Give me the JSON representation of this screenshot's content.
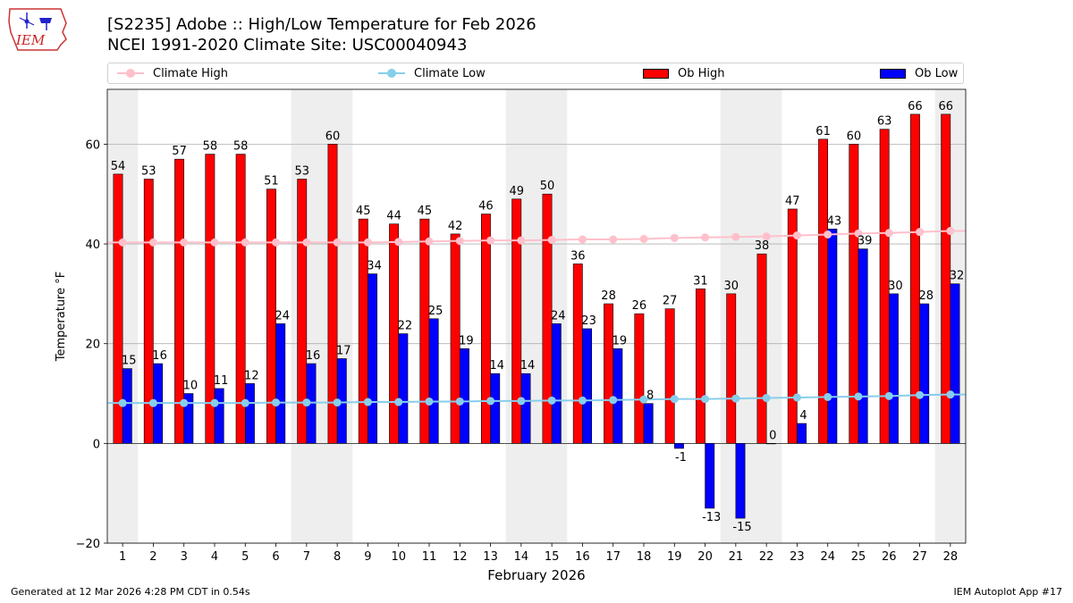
{
  "header": {
    "title_line1": "[S2235] Adobe :: High/Low Temperature for Feb 2026",
    "title_line2": "NCEI 1991-2020 Climate Site: USC00040943",
    "logo_text": "IEM"
  },
  "legend": {
    "climate_high": "Climate High",
    "climate_low": "Climate Low",
    "ob_high": "Ob High",
    "ob_low": "Ob Low"
  },
  "colors": {
    "ob_high": "#ff0000",
    "ob_low": "#0000ff",
    "climate_high": "#ffc0cb",
    "climate_low": "#87ceeb",
    "weekend_band": "#eeeeee",
    "grid": "#b0b0b0"
  },
  "footer": {
    "left": "Generated at 12 Mar 2026 4:28 PM CDT in 0.54s",
    "right": "IEM Autoplot App #17"
  },
  "chart_data": {
    "type": "bar",
    "xlabel": "February 2026",
    "ylabel": "Temperature °F",
    "ylim": [
      -20,
      71
    ],
    "yticks": [
      -20,
      0,
      20,
      40,
      60
    ],
    "grid": true,
    "legend_position": "top",
    "categories": [
      1,
      2,
      3,
      4,
      5,
      6,
      7,
      8,
      9,
      10,
      11,
      12,
      13,
      14,
      15,
      16,
      17,
      18,
      19,
      20,
      21,
      22,
      23,
      24,
      25,
      26,
      27,
      28
    ],
    "shaded_days": [
      1,
      7,
      8,
      14,
      15,
      21,
      22,
      28
    ],
    "series": [
      {
        "name": "Ob High",
        "kind": "bar",
        "values": [
          54,
          53,
          57,
          58,
          58,
          51,
          53,
          60,
          45,
          44,
          45,
          42,
          46,
          49,
          50,
          36,
          28,
          26,
          27,
          31,
          30,
          38,
          47,
          61,
          60,
          63,
          66,
          66
        ]
      },
      {
        "name": "Ob Low",
        "kind": "bar",
        "values": [
          15,
          16,
          10,
          11,
          12,
          24,
          16,
          17,
          34,
          22,
          25,
          19,
          14,
          14,
          24,
          23,
          19,
          8,
          -1,
          -13,
          -15,
          0,
          4,
          43,
          39,
          30,
          28,
          32
        ]
      },
      {
        "name": "Climate High",
        "kind": "line",
        "values": [
          40.3,
          40.3,
          40.3,
          40.3,
          40.3,
          40.3,
          40.3,
          40.3,
          40.3,
          40.4,
          40.5,
          40.6,
          40.7,
          40.7,
          40.8,
          40.9,
          40.9,
          41.0,
          41.2,
          41.3,
          41.4,
          41.5,
          41.7,
          41.9,
          42.1,
          42.2,
          42.4,
          42.6
        ]
      },
      {
        "name": "Climate Low",
        "kind": "line",
        "values": [
          8.1,
          8.1,
          8.1,
          8.1,
          8.1,
          8.2,
          8.2,
          8.2,
          8.3,
          8.3,
          8.4,
          8.4,
          8.5,
          8.5,
          8.6,
          8.6,
          8.7,
          8.8,
          8.9,
          8.9,
          9.0,
          9.1,
          9.2,
          9.3,
          9.4,
          9.5,
          9.7,
          9.8
        ]
      }
    ]
  }
}
